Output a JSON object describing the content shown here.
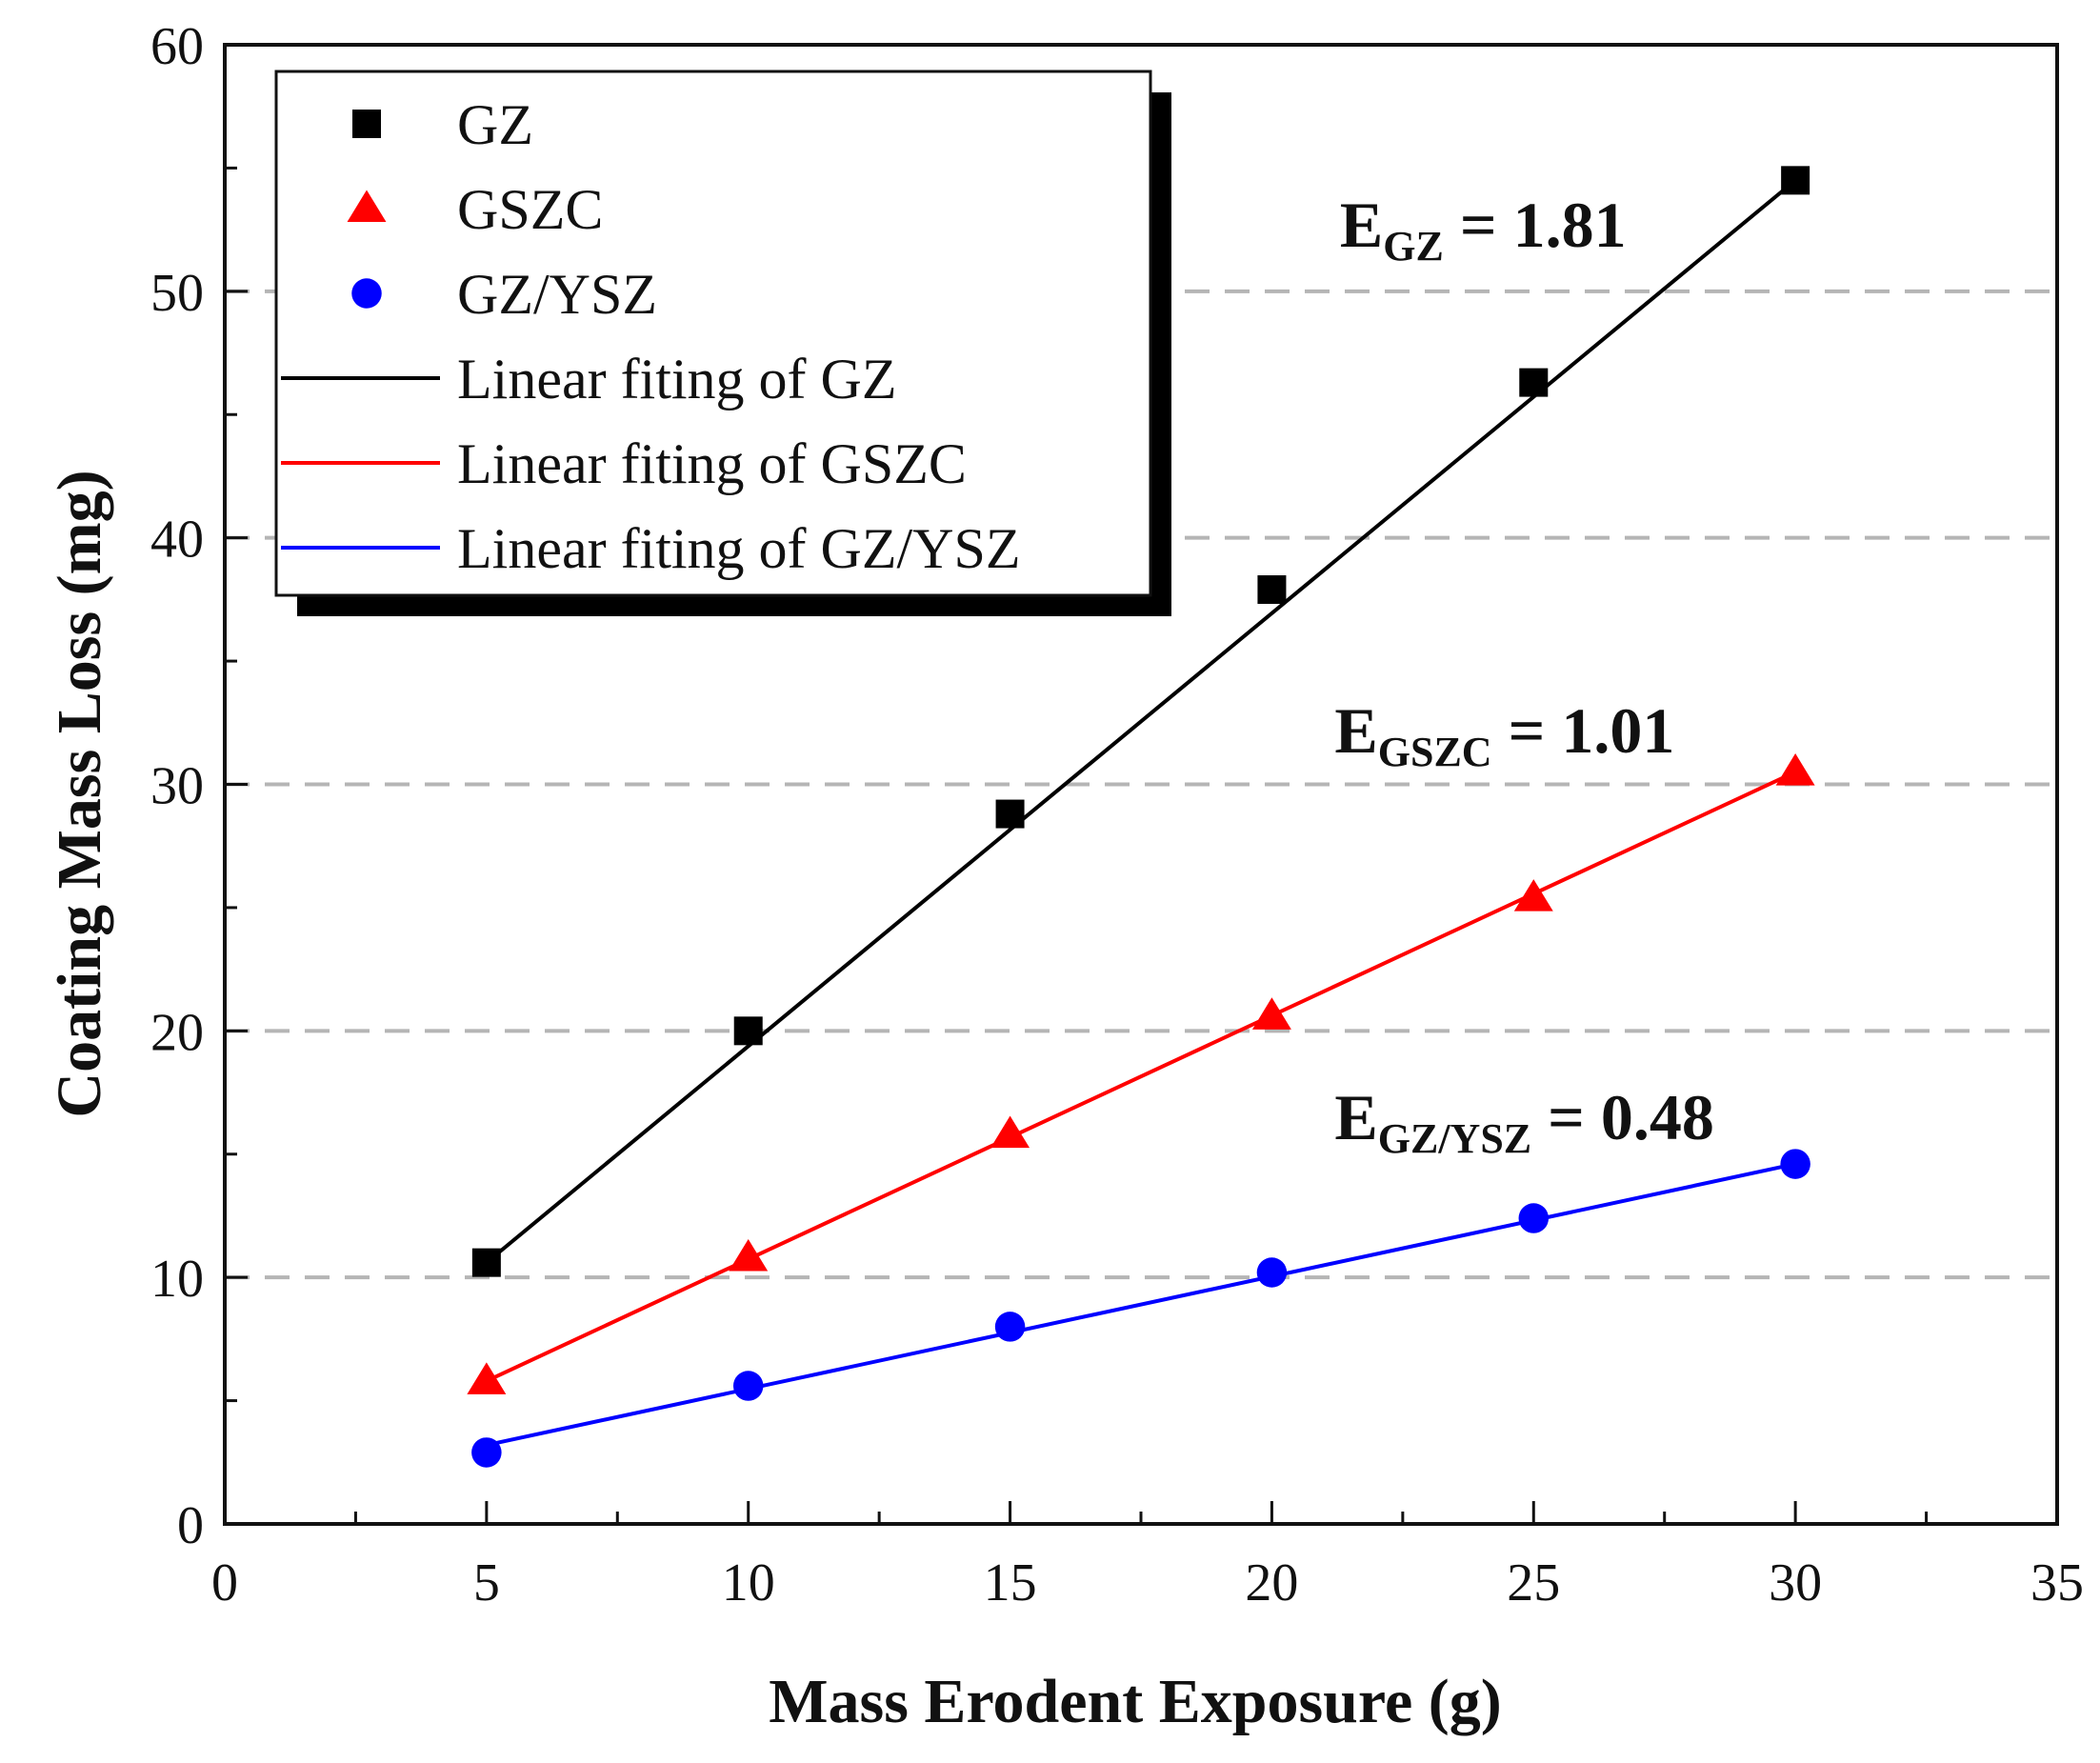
{
  "chart_data": {
    "type": "scatter",
    "xlabel": "Mass Erodent Exposure (g)",
    "ylabel": "Coating Mass Loss (mg)",
    "xlim": [
      0,
      35
    ],
    "ylim": [
      0,
      60
    ],
    "x_ticks": [
      "0",
      "5",
      "10",
      "15",
      "20",
      "25",
      "30",
      "35"
    ],
    "y_ticks": [
      "0",
      "10",
      "20",
      "30",
      "40",
      "50",
      "60"
    ],
    "grid": "dashed horizontal lines at 10, 20, 30, 40, 50",
    "legend_position": "top-left",
    "series": [
      {
        "name": "GZ",
        "marker": "square",
        "color": "#000000",
        "x": [
          5,
          10,
          15,
          20,
          25,
          30
        ],
        "y": [
          10.6,
          20.0,
          28.8,
          37.9,
          46.3,
          54.5
        ]
      },
      {
        "name": "GSZC",
        "marker": "triangle",
        "color": "#ff0000",
        "x": [
          5,
          10,
          15,
          20,
          25,
          30
        ],
        "y": [
          5.8,
          10.8,
          15.8,
          20.6,
          25.4,
          30.5
        ]
      },
      {
        "name": "GZ/YSZ",
        "marker": "circle",
        "color": "#0000ff",
        "x": [
          5,
          10,
          15,
          20,
          25,
          30
        ],
        "y": [
          2.9,
          5.6,
          8.0,
          10.2,
          12.4,
          14.6
        ]
      }
    ],
    "fits": [
      {
        "name": "Linear fiting of GZ",
        "color": "#000000",
        "x": [
          5,
          30
        ],
        "y": [
          10.6,
          54.5
        ]
      },
      {
        "name": "Linear fiting of GSZC",
        "color": "#ff0000",
        "x": [
          5,
          30
        ],
        "y": [
          5.8,
          30.5
        ]
      },
      {
        "name": "Linear fiting of GZ/YSZ",
        "color": "#0000ff",
        "x": [
          5,
          30
        ],
        "y": [
          3.2,
          14.6
        ]
      }
    ],
    "annotations": [
      {
        "main": "E",
        "sub": "GZ",
        "rest": " = 1.81",
        "x": 21.3,
        "y": 51.8
      },
      {
        "main": "E",
        "sub": "GSZC",
        "rest": " = 1.01",
        "x": 21.2,
        "y": 31.3
      },
      {
        "main": "E",
        "sub": "GZ/YSZ",
        "rest": " = 0.48",
        "x": 21.2,
        "y": 15.6
      }
    ]
  }
}
